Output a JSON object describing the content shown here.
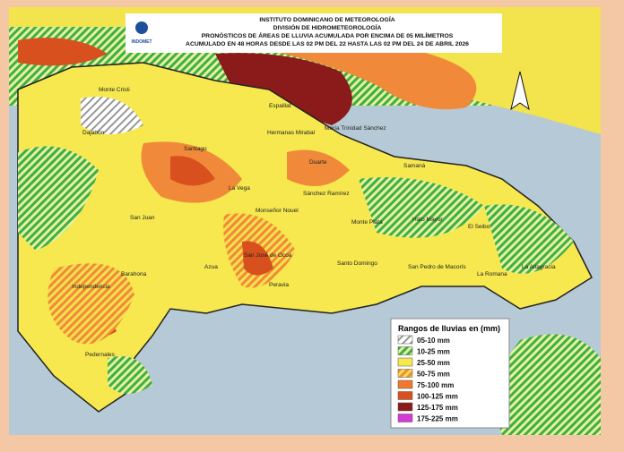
{
  "header": {
    "logo": "INDOMET",
    "lines": [
      "INSTITUTO DOMINICANO DE METEOROLOGÍA",
      "DIVISIÓN DE HIDROMETEOROLOGÍA",
      "PRONÓSTICOS DE ÁREAS DE LLUVIA ACUMULADA POR ENCIMA DE 05 MILÍMETROS",
      "ACUMULADO EN 48 HORAS DESDE LAS 02 PM DEL 22 HASTA LAS 02 PM DEL 24 DE ABRIL 2026"
    ]
  },
  "legend": {
    "title": "Rangos de lluvias en (mm)",
    "items": [
      "05-10 mm",
      "10-25 mm",
      "25-50 mm",
      "50-75 mm",
      "75-100 mm",
      "100-125 mm",
      "125-175 mm",
      "175-225 mm"
    ]
  },
  "places": [
    "Monte Cristi",
    "Dajabón",
    "Santiago",
    "La Vega",
    "Espaillat",
    "Hermanas Mirabal",
    "María Trinidad Sánchez",
    "Duarte",
    "Samaná",
    "Sánchez Ramírez",
    "Monseñor Nouel",
    "San Juan",
    "Azua",
    "Peravia",
    "San José de Ocoa",
    "Santo Domingo",
    "Monte Plata",
    "Hato Mayor",
    "El Seibo",
    "La Altagracia",
    "La Romana",
    "San Pedro de Macorís",
    "Barahona",
    "Independencia",
    "Pedernales"
  ]
}
